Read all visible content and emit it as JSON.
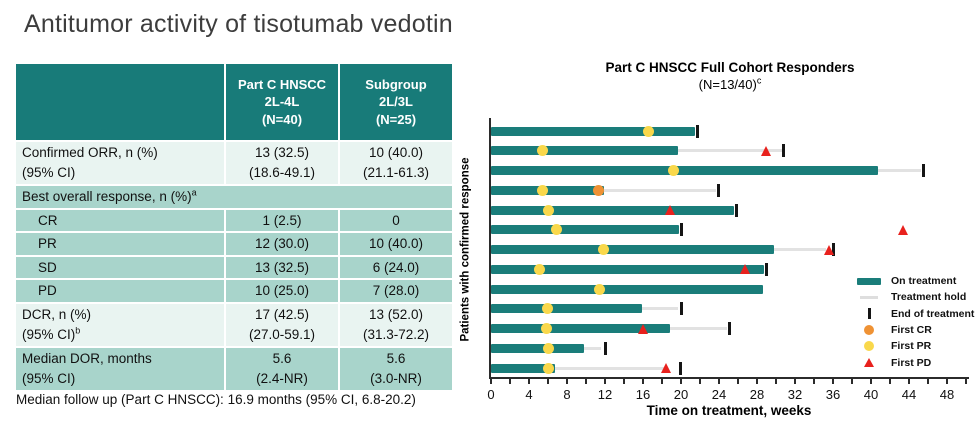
{
  "slide_title": "Antitumor activity of tisotumab vedotin",
  "footnote": "Median follow up (Part C HNSCC): 16.9 months (95% CI, 6.8-20.2)",
  "table": {
    "columns": [
      {
        "lines": []
      },
      {
        "lines": [
          "Part C HNSCC",
          "2L-4L",
          "(N=40)"
        ]
      },
      {
        "lines": [
          "Subgroup",
          "2L/3L",
          "(N=25)"
        ]
      }
    ],
    "rows": [
      {
        "shade": "light",
        "tall": true,
        "indent": false,
        "label_lines": [
          {
            "text": "Confirmed ORR, n (%)"
          },
          {
            "text": "(95% CI)"
          }
        ],
        "cells": [
          [
            "13 (32.5)",
            "(18.6-49.1)"
          ],
          [
            "10 (40.0)",
            "(21.1-61.3)"
          ]
        ]
      },
      {
        "shade": "medium",
        "tall": false,
        "indent": false,
        "span": true,
        "label_lines": [
          {
            "text": "Best overall response, n (%)",
            "sup": "a"
          }
        ],
        "cells": []
      },
      {
        "shade": "medium",
        "tall": false,
        "indent": true,
        "label_lines": [
          {
            "text": "CR"
          }
        ],
        "cells": [
          [
            "1 (2.5)"
          ],
          [
            "0"
          ]
        ]
      },
      {
        "shade": "medium",
        "tall": false,
        "indent": true,
        "label_lines": [
          {
            "text": "PR"
          }
        ],
        "cells": [
          [
            "12 (30.0)"
          ],
          [
            "10 (40.0)"
          ]
        ]
      },
      {
        "shade": "medium",
        "tall": false,
        "indent": true,
        "label_lines": [
          {
            "text": "SD"
          }
        ],
        "cells": [
          [
            "13 (32.5)"
          ],
          [
            "6 (24.0)"
          ]
        ]
      },
      {
        "shade": "medium",
        "tall": false,
        "indent": true,
        "label_lines": [
          {
            "text": "PD"
          }
        ],
        "cells": [
          [
            "10 (25.0)"
          ],
          [
            "7 (28.0)"
          ]
        ]
      },
      {
        "shade": "light",
        "tall": true,
        "indent": false,
        "label_lines": [
          {
            "text": "DCR, n (%)"
          },
          {
            "text": "(95% CI)",
            "sup": "b"
          }
        ],
        "cells": [
          [
            "17 (42.5)",
            "(27.0-59.1)"
          ],
          [
            "13 (52.0)",
            "(31.3-72.2)"
          ]
        ]
      },
      {
        "shade": "medium",
        "tall": true,
        "indent": false,
        "label_lines": [
          {
            "text": "Median DOR, months"
          },
          {
            "text": "(95% CI)"
          }
        ],
        "cells": [
          [
            "5.6",
            "(2.4-NR)"
          ],
          [
            "5.6",
            "(3.0-NR)"
          ]
        ]
      }
    ]
  },
  "chart_data": {
    "type": "swimmer-bar",
    "title": "Part C HNSCC Full Cohort Responders",
    "subtitle": "(N=13/40)",
    "subtitle_sup": "c",
    "xlabel": "Time on treatment, weeks",
    "ylabel": "Patients with confirmed response",
    "xlim": [
      0,
      50
    ],
    "x_major_ticks": [
      0,
      4,
      8,
      12,
      16,
      20,
      24,
      28,
      32,
      36,
      40,
      44,
      48
    ],
    "x_minor_step": 2,
    "colors": {
      "on_treatment": "#1a7d7a",
      "treatment_hold": "#e2e2e2",
      "end_of_treatment": "#151515",
      "first_cr": "#ef9234",
      "first_pr": "#f9d84b",
      "first_pd": "#e8211d"
    },
    "legend": [
      {
        "key": "on",
        "label": "On treatment"
      },
      {
        "key": "hold",
        "label": "Treatment hold"
      },
      {
        "key": "end",
        "label": "End of treatment"
      },
      {
        "key": "cr",
        "label": "First CR"
      },
      {
        "key": "pr",
        "label": "First PR"
      },
      {
        "key": "pd",
        "label": "First PD"
      }
    ],
    "patients": [
      {
        "on_end": 21.5,
        "hold_end": null,
        "eot": 21.7,
        "cr": null,
        "pr": 16.6,
        "pd": null
      },
      {
        "on_end": 19.7,
        "hold_end": 30.6,
        "eot": 30.8,
        "cr": null,
        "pr": 5.4,
        "pd": 29.0
      },
      {
        "on_end": 40.7,
        "hold_end": 45.3,
        "eot": 45.5,
        "cr": null,
        "pr": 19.2,
        "pd": null
      },
      {
        "on_end": 11.9,
        "hold_end": 23.7,
        "eot": 23.9,
        "cr": 11.3,
        "pr": 5.4,
        "pd": null
      },
      {
        "on_end": 25.6,
        "hold_end": null,
        "eot": 25.8,
        "cr": null,
        "pr": 6.1,
        "pd": 18.9
      },
      {
        "on_end": 19.8,
        "hold_end": null,
        "eot": 20.0,
        "cr": null,
        "pr": 6.9,
        "pd": 43.4
      },
      {
        "on_end": 29.8,
        "hold_end": 35.3,
        "eot": 36.0,
        "cr": null,
        "pr": 11.8,
        "pd": 35.6
      },
      {
        "on_end": 28.7,
        "hold_end": null,
        "eot": 29.0,
        "cr": null,
        "pr": 5.1,
        "pd": 26.8
      },
      {
        "on_end": 28.6,
        "hold_end": null,
        "eot": null,
        "cr": null,
        "pr": 11.4,
        "pd": null
      },
      {
        "on_end": 15.9,
        "hold_end": 19.7,
        "eot": 20.1,
        "cr": null,
        "pr": 5.9,
        "pd": null
      },
      {
        "on_end": 18.8,
        "hold_end": 24.8,
        "eot": 25.1,
        "cr": null,
        "pr": 5.8,
        "pd": 16.0
      },
      {
        "on_end": 9.8,
        "hold_end": 11.6,
        "eot": 12.0,
        "cr": null,
        "pr": 6.0,
        "pd": null
      },
      {
        "on_end": 6.7,
        "hold_end": 18.3,
        "eot": 19.9,
        "cr": null,
        "pr": 6.1,
        "pd": 18.5
      }
    ]
  }
}
